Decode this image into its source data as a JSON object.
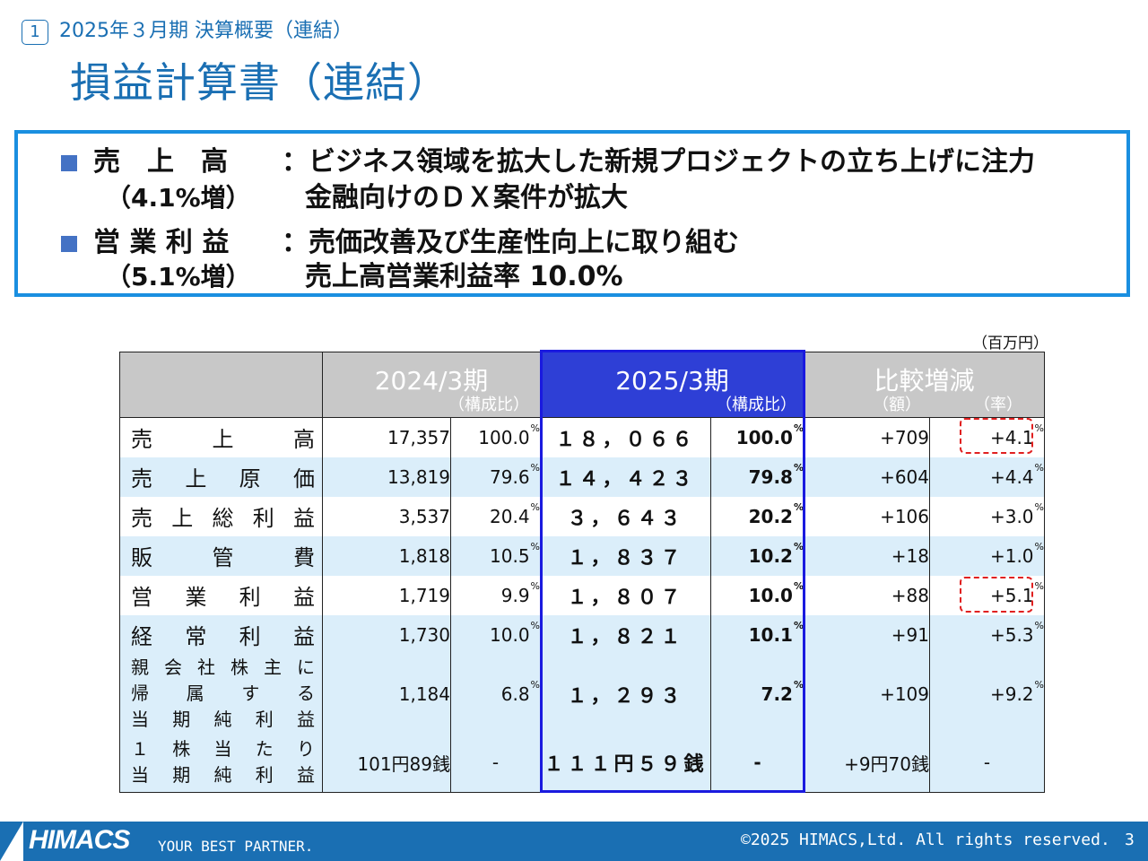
{
  "header": {
    "section_number": "1",
    "section_title": "2025年３月期 決算概要（連結）",
    "page_title": "損益計算書（連結）"
  },
  "summary": {
    "items": [
      {
        "label": "売　上　高",
        "sub": "（4.1%増）",
        "lines": [
          "：ビジネス領域を拡大した新規プロジェクトの立ち上げに注力",
          "金融向けのＤＸ案件が拡大"
        ]
      },
      {
        "label": "営 業 利 益",
        "sub": "（5.1%増）",
        "lines": [
          "：売価改善及び生産性向上に取り組む",
          "売上高営業利益率 10.0%"
        ]
      }
    ]
  },
  "table": {
    "unit": "（百万円）",
    "headers": {
      "prev": "2024/3期",
      "prev_sub": "（構成比）",
      "cur": "2025/3期",
      "cur_sub": "（構成比）",
      "diff": "比較増減",
      "diff_amount": "（額）",
      "diff_rate": "（率）"
    },
    "rows": [
      {
        "label": [
          "売",
          "上",
          "高"
        ],
        "prev": "17,357",
        "prev_pct": "100.0",
        "cur": "１８，０６６",
        "cur_pct": "100.0",
        "diff": "+709",
        "rate": "+4.1"
      },
      {
        "label": [
          "売",
          "上",
          "原",
          "価"
        ],
        "prev": "13,819",
        "prev_pct": "79.6",
        "cur": "１４，４２３",
        "cur_pct": "79.8",
        "diff": "+604",
        "rate": "+4.4"
      },
      {
        "label": [
          "売",
          "上",
          "総",
          "利",
          "益"
        ],
        "prev": "3,537",
        "prev_pct": "20.4",
        "cur": "３，６４３",
        "cur_pct": "20.2",
        "diff": "+106",
        "rate": "+3.0"
      },
      {
        "label": [
          "販",
          "管",
          "費"
        ],
        "prev": "1,818",
        "prev_pct": "10.5",
        "cur": "１，８３７",
        "cur_pct": "10.2",
        "diff": "+18",
        "rate": "+1.0"
      },
      {
        "label": [
          "営",
          "業",
          "利",
          "益"
        ],
        "prev": "1,719",
        "prev_pct": "9.9",
        "cur": "１，８０７",
        "cur_pct": "10.0",
        "diff": "+88",
        "rate": "+5.1"
      },
      {
        "label": [
          "経",
          "常",
          "利",
          "益"
        ],
        "prev": "1,730",
        "prev_pct": "10.0",
        "cur": "１，８２１",
        "cur_pct": "10.1",
        "diff": "+91",
        "rate": "+5.3"
      },
      {
        "label_lines": [
          [
            "親",
            "会",
            "社",
            "株",
            "主",
            "に"
          ],
          [
            "帰",
            "属",
            "す",
            "る"
          ],
          [
            "当",
            "期",
            "純",
            "利",
            "益"
          ]
        ],
        "prev": "1,184",
        "prev_pct": "6.8",
        "cur": "１，２９３",
        "cur_pct": "7.2",
        "diff": "+109",
        "rate": "+9.2"
      },
      {
        "label_lines": [
          [
            "１",
            "株",
            "当",
            "た",
            "り"
          ],
          [
            "当",
            "期",
            "純",
            "利",
            "益"
          ]
        ],
        "prev": "101円89銭",
        "prev_pct": "-",
        "cur": "１１１円５９銭",
        "cur_pct": "-",
        "diff": "+9円70銭",
        "rate": "-"
      }
    ],
    "pct_mark": "%"
  },
  "footer": {
    "logo": "HIMACS",
    "tagline": "YOUR BEST PARTNER.",
    "copyright": "©2025 HIMACS,Ltd. All rights reserved.",
    "page": "3"
  },
  "colors": {
    "accent": "#1a6fb3",
    "frame": "#1a8fe0",
    "current_header": "#2e3fd6",
    "row_alt": "#dbeefa",
    "highlight": "#e02020"
  }
}
